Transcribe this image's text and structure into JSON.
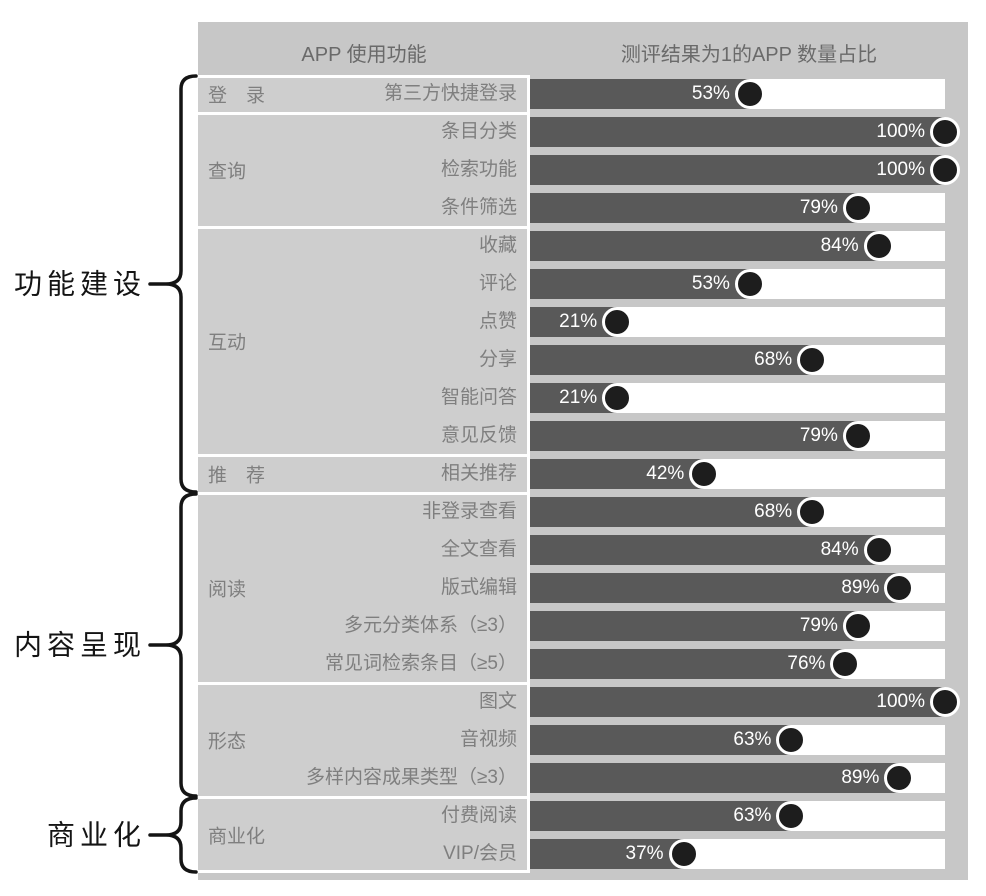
{
  "colors": {
    "table_bg": "#c7c7c7",
    "label_cell_bg": "#cecece",
    "bar_fill": "#595959",
    "bar_track": "#ffffff",
    "marker": "#1d1d1d",
    "percent_text": "#ffffff",
    "muted_text": "#7f7f7f",
    "header_text": "#6a6a6a",
    "bracket": "#141414",
    "sep": "#ffffff"
  },
  "chart_data": {
    "type": "bar",
    "orientation": "horizontal",
    "value_unit": "%",
    "xlim": [
      0,
      100
    ],
    "grid": false,
    "legend": "none",
    "headers": {
      "functions": "APP 使用功能",
      "result": "测评结果为1的APP 数量占比"
    },
    "sections": [
      {
        "label": "功能建设",
        "groups": [
          {
            "name": "登　录",
            "rows": [
              {
                "label": "第三方快捷登录",
                "value": 53
              }
            ]
          },
          {
            "name": "查询",
            "rows": [
              {
                "label": "条目分类",
                "value": 100
              },
              {
                "label": "检索功能",
                "value": 100
              },
              {
                "label": "条件筛选",
                "value": 79
              }
            ]
          },
          {
            "name": "互动",
            "rows": [
              {
                "label": "收藏",
                "value": 84
              },
              {
                "label": "评论",
                "value": 53
              },
              {
                "label": "点赞",
                "value": 21
              },
              {
                "label": "分享",
                "value": 68
              },
              {
                "label": "智能问答",
                "value": 21
              },
              {
                "label": "意见反馈",
                "value": 79
              }
            ]
          },
          {
            "name": "推　荐",
            "rows": [
              {
                "label": "相关推荐",
                "value": 42
              }
            ]
          }
        ]
      },
      {
        "label": "内容呈现",
        "groups": [
          {
            "name": "阅读",
            "rows": [
              {
                "label": "非登录查看",
                "value": 68
              },
              {
                "label": "全文查看",
                "value": 84
              },
              {
                "label": "版式编辑",
                "value": 89
              },
              {
                "label": "多元分类体系（≥3）",
                "value": 79
              },
              {
                "label": "常见词检索条目（≥5）",
                "value": 76
              }
            ]
          },
          {
            "name": "形态",
            "rows": [
              {
                "label": "图文",
                "value": 100
              },
              {
                "label": "音视频",
                "value": 63
              },
              {
                "label": "多样内容成果类型（≥3）",
                "value": 89
              }
            ]
          }
        ]
      },
      {
        "label": "商业化",
        "groups": [
          {
            "name": "商业化",
            "rows": [
              {
                "label": "付费阅读",
                "value": 63
              },
              {
                "label": "VIP/会员",
                "value": 37
              }
            ]
          }
        ]
      }
    ]
  }
}
